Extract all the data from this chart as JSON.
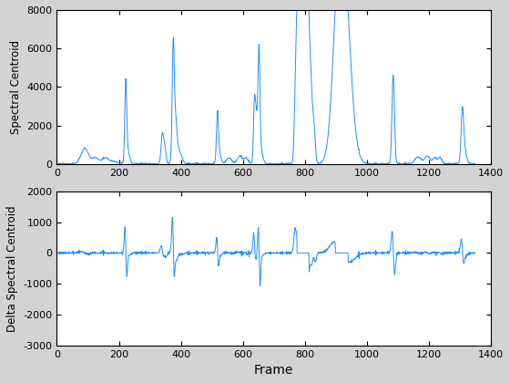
{
  "ylabel1": "Spectral Centroid",
  "ylabel2": "Delta Spectral Centroid",
  "xlabel": "Frame",
  "xlim": [
    0,
    1400
  ],
  "ylim1": [
    0,
    8000
  ],
  "ylim2": [
    -3000,
    2000
  ],
  "yticks1": [
    0,
    2000,
    4000,
    6000,
    8000
  ],
  "yticks2": [
    -3000,
    -2000,
    -1000,
    0,
    1000,
    2000
  ],
  "xticks": [
    0,
    200,
    400,
    600,
    800,
    1000,
    1200,
    1400
  ],
  "line_color": "#1E90FF",
  "line_width": 0.7,
  "bg_color": "#ffffff",
  "fig_bg_color": "#d3d3d3"
}
